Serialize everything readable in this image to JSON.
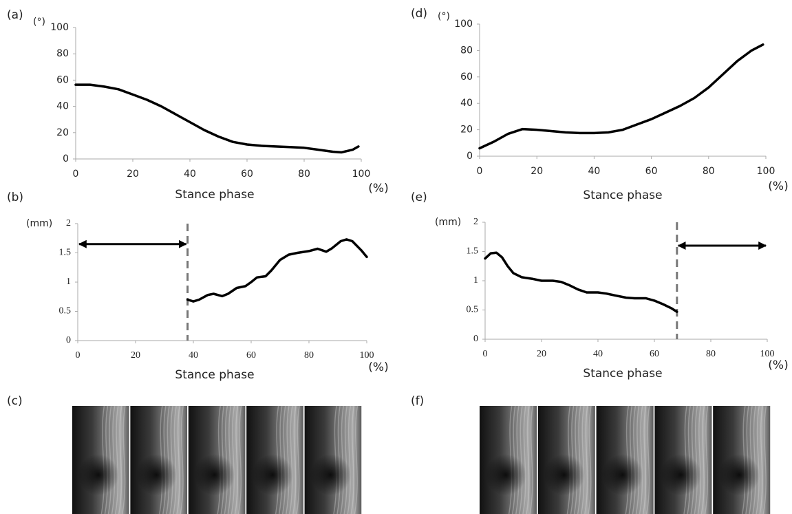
{
  "chart_data": [
    {
      "type": "line",
      "panel": "(a)",
      "y_unit": "(°)",
      "x_unit": "(%)",
      "xlabel": "Stance phase",
      "xlim": [
        0,
        100
      ],
      "xticks": [
        0,
        20,
        40,
        60,
        80,
        100
      ],
      "ylim": [
        0,
        100
      ],
      "yticks": [
        0,
        20,
        40,
        60,
        80,
        100
      ],
      "color": "#000000",
      "x": [
        0,
        5,
        10,
        15,
        20,
        25,
        30,
        35,
        40,
        45,
        50,
        55,
        60,
        65,
        70,
        75,
        80,
        85,
        90,
        93,
        97,
        99
      ],
      "values": [
        56.5,
        56.5,
        55,
        53,
        49,
        45,
        40,
        34,
        28,
        22,
        17,
        13,
        11,
        10,
        9.5,
        9,
        8.5,
        7,
        5.5,
        5,
        7,
        9.5
      ]
    },
    {
      "type": "line",
      "panel": "(d)",
      "y_unit": "(°)",
      "x_unit": "(%)",
      "xlabel": "Stance phase",
      "xlim": [
        0,
        100
      ],
      "xticks": [
        0,
        20,
        40,
        60,
        80,
        100
      ],
      "ylim": [
        0,
        100
      ],
      "yticks": [
        0,
        20,
        40,
        60,
        80,
        100
      ],
      "color": "#000000",
      "x": [
        0,
        5,
        10,
        15,
        20,
        25,
        30,
        35,
        40,
        45,
        50,
        55,
        60,
        65,
        70,
        75,
        80,
        85,
        90,
        95,
        99
      ],
      "values": [
        6,
        11,
        17,
        20.5,
        20,
        19,
        18,
        17.5,
        17.5,
        18,
        20,
        24,
        28,
        33,
        38,
        44,
        52,
        62,
        72,
        80,
        84.5
      ]
    },
    {
      "type": "line",
      "panel": "(b)",
      "y_unit": "(mm)",
      "x_unit": "(%)",
      "xlabel": "Stance phase",
      "xlim": [
        0,
        100
      ],
      "xticks": [
        0,
        20,
        40,
        60,
        80,
        100
      ],
      "ylim": [
        0,
        2
      ],
      "yticks": [
        0,
        0.5,
        1,
        1.5,
        2
      ],
      "color": "#000000",
      "vline": 38,
      "span": [
        0,
        38
      ],
      "span_y": 1.65,
      "x": [
        38,
        40,
        42,
        45,
        47,
        50,
        52,
        55,
        58,
        60,
        62,
        65,
        67,
        70,
        73,
        76,
        80,
        83,
        86,
        88,
        91,
        93,
        95,
        98,
        100
      ],
      "values": [
        0.7,
        0.67,
        0.7,
        0.78,
        0.8,
        0.76,
        0.8,
        0.9,
        0.93,
        1.0,
        1.08,
        1.1,
        1.2,
        1.38,
        1.47,
        1.5,
        1.53,
        1.57,
        1.52,
        1.58,
        1.7,
        1.73,
        1.7,
        1.55,
        1.43
      ]
    },
    {
      "type": "line",
      "panel": "(e)",
      "y_unit": "(mm)",
      "x_unit": "(%)",
      "xlabel": "Stance phase",
      "xlim": [
        0,
        100
      ],
      "xticks": [
        0,
        20,
        40,
        60,
        80,
        100
      ],
      "ylim": [
        0,
        2
      ],
      "yticks": [
        0,
        0.5,
        1,
        1.5,
        2
      ],
      "color": "#000000",
      "vline": 68,
      "span": [
        68,
        100
      ],
      "span_y": 1.6,
      "x": [
        0,
        2,
        4,
        6,
        8,
        10,
        13,
        17,
        20,
        24,
        27,
        30,
        33,
        36,
        40,
        43,
        46,
        50,
        53,
        57,
        60,
        63,
        66,
        68
      ],
      "values": [
        1.38,
        1.47,
        1.48,
        1.4,
        1.25,
        1.13,
        1.06,
        1.03,
        1.0,
        1.0,
        0.98,
        0.92,
        0.85,
        0.8,
        0.8,
        0.78,
        0.75,
        0.71,
        0.7,
        0.7,
        0.66,
        0.6,
        0.53,
        0.47
      ]
    }
  ],
  "image_panels": [
    {
      "label": "(c)"
    },
    {
      "label": "(f)"
    }
  ]
}
